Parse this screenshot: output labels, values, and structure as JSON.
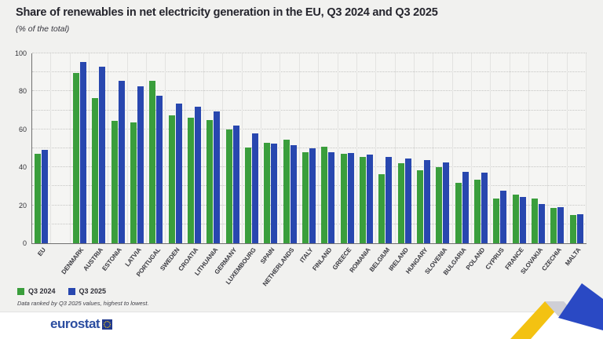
{
  "header": {
    "title": "Share of renewables in net electricity generation in the EU, Q3 2024 and Q3 2025",
    "subtitle": "(% of the total)"
  },
  "legend": [
    {
      "label": "Q3 2024",
      "color": "#3a9e3c"
    },
    {
      "label": "Q3 2025",
      "color": "#2847af"
    }
  ],
  "note": "Data ranked by Q3 2025 values, highest to lowest.",
  "footer": {
    "logo_text": "eurostat"
  },
  "colors": {
    "q3_2024_green": "#3a9e3c",
    "q3_2025_blue": "#2847af",
    "background": "#f1f1ef",
    "plot_background": "#f5f5f3",
    "ribbon_yellow": "#f3c212",
    "ribbon_blue": "#2a49c4",
    "logo_blue": "#2b4da0"
  },
  "chart_data": {
    "type": "bar",
    "title": "Share of renewables in net electricity generation in the EU, Q3 2024 and Q3 2025",
    "xlabel": "",
    "ylabel": "% of the total",
    "ylim": [
      0,
      100
    ],
    "y_axis": {
      "min": 0,
      "max": 100,
      "tick_step": 20,
      "grid_step": 10
    },
    "grid": true,
    "legend_position": "bottom-left",
    "layout": {
      "gap_after_index": 0,
      "ranking_note": "ranked by Q3 2025 values, highest to lowest"
    },
    "categories": [
      "EU",
      "DENMARK",
      "AUSTRIA",
      "ESTONIA",
      "LATVIA",
      "PORTUGAL",
      "SWEDEN",
      "CROATIA",
      "LITHUANIA",
      "GERMANY",
      "LUXEMBOURG",
      "SPAIN",
      "NETHERLANDS",
      "ITALY",
      "FINLAND",
      "GREECE",
      "ROMANIA",
      "BELGIUM",
      "IRELAND",
      "HUNGARY",
      "SLOVENIA",
      "BULGARIA",
      "POLAND",
      "CYPRUS",
      "FRANCE",
      "SLOVAKIA",
      "CZECHIA",
      "MALTA"
    ],
    "series": [
      {
        "name": "Q3 2024",
        "color": "#3a9e3c",
        "values": [
          47,
          89.5,
          76.5,
          64.5,
          63.5,
          85.5,
          67.5,
          66,
          65,
          60,
          50.5,
          53,
          54.5,
          48,
          51,
          47,
          45.5,
          36.5,
          42,
          38.5,
          40,
          32,
          33.5,
          23.5,
          25.5,
          23.5,
          18.5,
          15
        ]
      },
      {
        "name": "Q3 2025",
        "color": "#2847af",
        "values": [
          49,
          95.5,
          93,
          85.5,
          82.5,
          77.5,
          73.5,
          72,
          69.5,
          62,
          58,
          52.5,
          51.5,
          50,
          48,
          47.5,
          46.5,
          45.5,
          44.5,
          44,
          42.5,
          37.5,
          37,
          27.5,
          24.5,
          20.5,
          19,
          15.5
        ]
      }
    ]
  }
}
